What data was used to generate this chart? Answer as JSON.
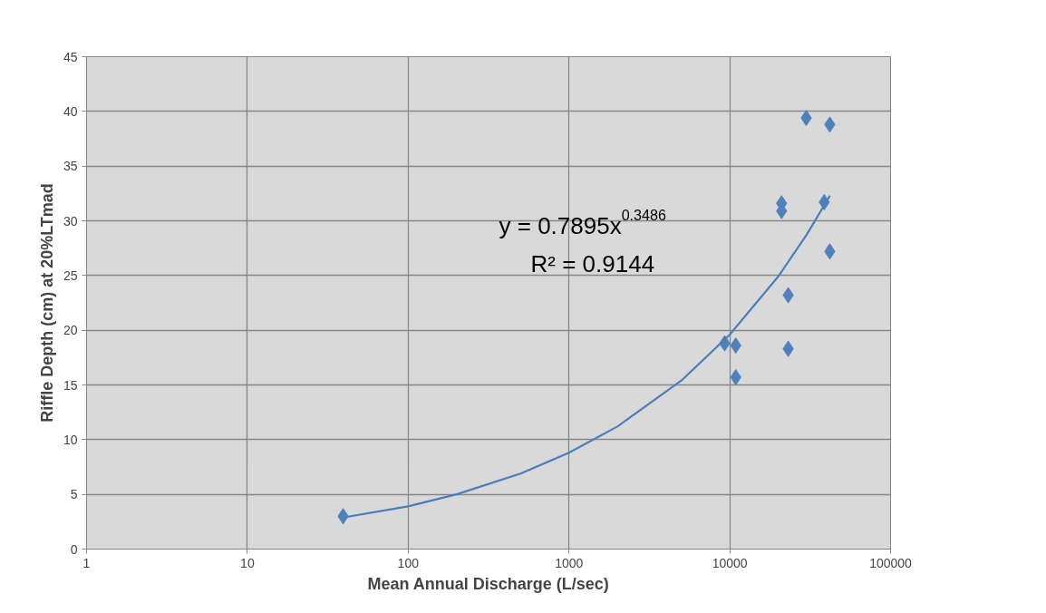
{
  "chart_data": {
    "type": "scatter",
    "xlabel": "Mean Annual Discharge (L/sec)",
    "ylabel": "Riffle Depth (cm) at 20%LTmad",
    "log": "x",
    "grid": true,
    "marker": "diamond",
    "xlim": [
      1,
      100000
    ],
    "xticks": [
      1,
      10,
      100,
      1000,
      10000,
      100000
    ],
    "ylim": [
      0,
      45
    ],
    "yticks": [
      0,
      5,
      10,
      15,
      20,
      25,
      30,
      35,
      40,
      45
    ],
    "annotations": [
      "y = 0.7895x$^{0.3486}$",
      "R² = 0.9144"
    ],
    "series": [
      {
        "color": "#4f81bd",
        "x": [
          39.4,
          9300,
          10900,
          10900,
          21000,
          21000,
          23100,
          23100,
          29900,
          38700,
          41900,
          41900
        ],
        "values": [
          3.0,
          18.8,
          18.6,
          15.7,
          31.6,
          30.9,
          23.2,
          18.3,
          39.4,
          31.7,
          38.8,
          27.2
        ]
      },
      {
        "type": "line",
        "marker": "none",
        "color": "#4a7ebb",
        "x": [
          40,
          100,
          200,
          500,
          1000,
          2000,
          5000,
          10000,
          20000,
          30000,
          42000
        ],
        "values": [
          2.9,
          3.9,
          5.0,
          6.9,
          8.8,
          11.2,
          15.4,
          19.6,
          24.9,
          28.7,
          32.3
        ]
      }
    ]
  }
}
